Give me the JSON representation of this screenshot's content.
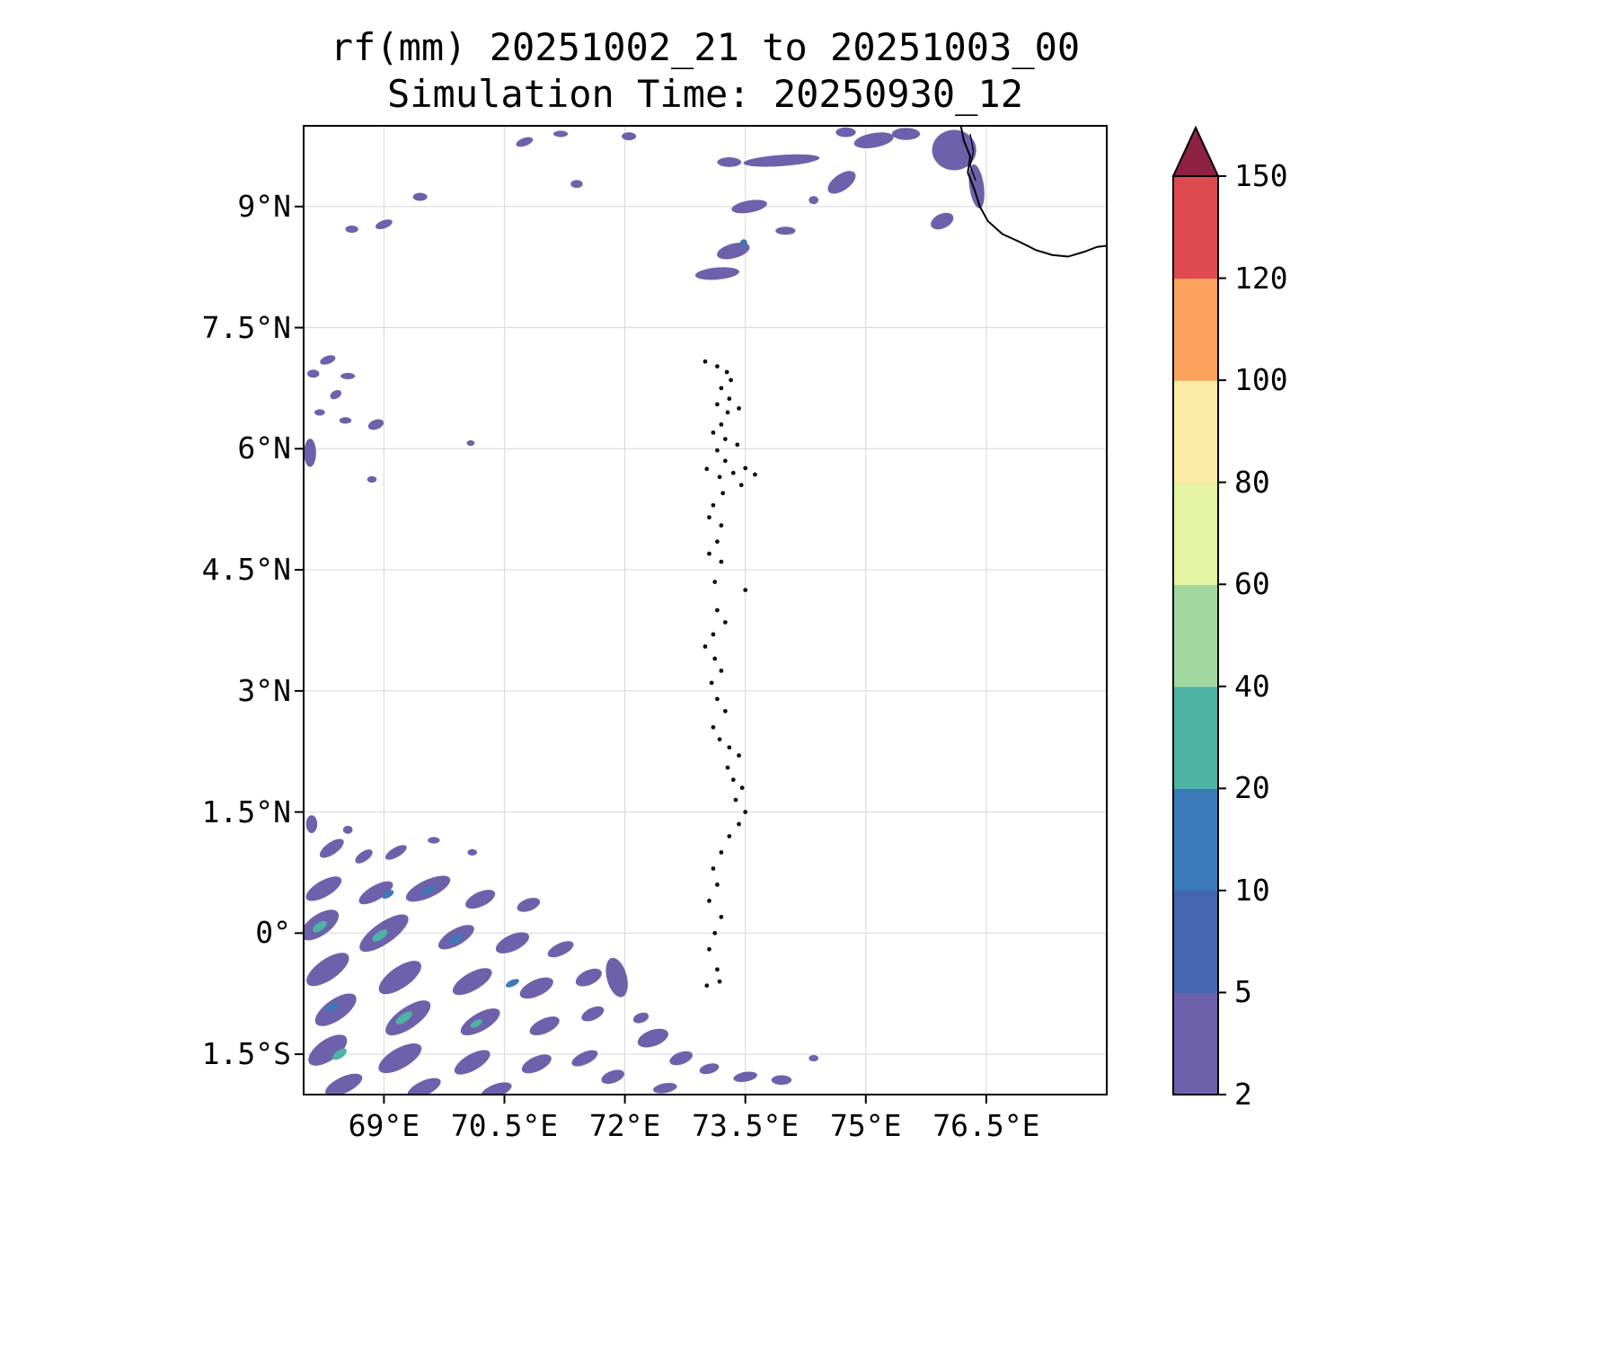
{
  "figure": {
    "kind": "rainfall-map",
    "units": "mm"
  },
  "chart_data": {
    "type": "heatmap",
    "title": "rf(mm) 20251002_21 to 20251003_00",
    "subtitle": "Simulation Time: 20250930_12",
    "x_axis": {
      "range": [
        68,
        78
      ],
      "ticks": [
        {
          "label": "69°E",
          "lon": 69
        },
        {
          "label": "70.5°E",
          "lon": 70.5
        },
        {
          "label": "72°E",
          "lon": 72
        },
        {
          "label": "73.5°E",
          "lon": 73.5
        },
        {
          "label": "75°E",
          "lon": 75
        },
        {
          "label": "76.5°E",
          "lon": 76.5
        }
      ]
    },
    "y_axis": {
      "range": [
        -2,
        10
      ],
      "ticks": [
        {
          "label": "9°N",
          "lat": 9
        },
        {
          "label": "7.5°N",
          "lat": 7.5
        },
        {
          "label": "6°N",
          "lat": 6
        },
        {
          "label": "4.5°N",
          "lat": 4.5
        },
        {
          "label": "3°N",
          "lat": 3
        },
        {
          "label": "1.5°N",
          "lat": 1.5
        },
        {
          "label": "0°",
          "lat": 0
        },
        {
          "label": "1.5°S",
          "lat": -1.5
        }
      ]
    },
    "colorbar": {
      "levels": [
        2,
        5,
        10,
        20,
        40,
        60,
        80,
        100,
        120,
        150
      ],
      "labels": [
        "2",
        "5",
        "10",
        "20",
        "40",
        "60",
        "80",
        "100",
        "120",
        "150"
      ],
      "segment_colors": [
        "#6e61ac",
        "#4565ae",
        "#3a7ab8",
        "#4db3a4",
        "#a0d8a0",
        "#e4f4a2",
        "#fdeca6",
        "#fba35c",
        "#dd4a4f"
      ],
      "extend_max_color": "#8e2044",
      "extend": "max"
    },
    "grid_color": "#dcdcdc",
    "coastline": [
      [
        76.18,
        10.02
      ],
      [
        76.22,
        9.82
      ],
      [
        76.3,
        9.62
      ],
      [
        76.27,
        9.42
      ],
      [
        76.35,
        9.22
      ],
      [
        76.42,
        9.0
      ],
      [
        76.52,
        8.82
      ],
      [
        76.7,
        8.66
      ],
      [
        76.92,
        8.56
      ],
      [
        77.12,
        8.46
      ],
      [
        77.32,
        8.4
      ],
      [
        77.52,
        8.38
      ],
      [
        77.72,
        8.44
      ],
      [
        77.88,
        8.5
      ],
      [
        78.05,
        8.52
      ]
    ],
    "coast_detail": [
      [
        76.3,
        9.9
      ],
      [
        76.34,
        9.68
      ],
      [
        76.3,
        9.5
      ],
      [
        76.37,
        9.32
      ]
    ],
    "island_dots": [
      [
        73.0,
        7.08
      ],
      [
        73.15,
        7.02
      ],
      [
        73.27,
        6.95
      ],
      [
        73.32,
        6.85
      ],
      [
        73.2,
        6.75
      ],
      [
        73.3,
        6.62
      ],
      [
        73.15,
        6.55
      ],
      [
        73.28,
        6.45
      ],
      [
        73.42,
        6.5
      ],
      [
        73.2,
        6.3
      ],
      [
        73.1,
        6.2
      ],
      [
        73.25,
        6.12
      ],
      [
        73.4,
        6.05
      ],
      [
        73.15,
        5.98
      ],
      [
        73.25,
        5.85
      ],
      [
        73.02,
        5.75
      ],
      [
        73.18,
        5.65
      ],
      [
        73.35,
        5.7
      ],
      [
        73.5,
        5.76
      ],
      [
        73.62,
        5.68
      ],
      [
        73.45,
        5.55
      ],
      [
        73.22,
        5.45
      ],
      [
        73.1,
        5.3
      ],
      [
        73.05,
        5.15
      ],
      [
        73.2,
        5.05
      ],
      [
        73.15,
        4.85
      ],
      [
        73.05,
        4.7
      ],
      [
        73.2,
        4.6
      ],
      [
        73.12,
        4.35
      ],
      [
        73.5,
        4.25
      ],
      [
        73.15,
        4.0
      ],
      [
        73.25,
        3.85
      ],
      [
        73.1,
        3.7
      ],
      [
        73.0,
        3.55
      ],
      [
        73.12,
        3.4
      ],
      [
        73.2,
        3.25
      ],
      [
        73.08,
        3.1
      ],
      [
        73.15,
        2.9
      ],
      [
        73.25,
        2.75
      ],
      [
        73.1,
        2.55
      ],
      [
        73.18,
        2.4
      ],
      [
        73.3,
        2.3
      ],
      [
        73.42,
        2.2
      ],
      [
        73.28,
        2.05
      ],
      [
        73.35,
        1.9
      ],
      [
        73.46,
        1.8
      ],
      [
        73.38,
        1.65
      ],
      [
        73.5,
        1.5
      ],
      [
        73.42,
        1.35
      ],
      [
        73.3,
        1.2
      ],
      [
        73.2,
        1.0
      ],
      [
        73.1,
        0.8
      ],
      [
        73.15,
        0.6
      ],
      [
        73.05,
        0.4
      ],
      [
        73.2,
        0.2
      ],
      [
        73.12,
        0.0
      ],
      [
        73.05,
        -0.2
      ],
      [
        73.15,
        -0.45
      ],
      [
        73.02,
        -0.65
      ],
      [
        73.18,
        -0.6
      ]
    ],
    "blob_columns": [
      "lon",
      "lat",
      "width_deg",
      "height_deg",
      "rotation_deg",
      "level_index"
    ],
    "blobs": [
      [
        75.1,
        9.82,
        0.5,
        0.18,
        -10,
        0
      ],
      [
        75.5,
        9.9,
        0.35,
        0.15,
        0,
        0
      ],
      [
        74.75,
        9.92,
        0.25,
        0.12,
        0,
        0
      ],
      [
        76.1,
        9.7,
        0.55,
        0.5,
        0,
        0
      ],
      [
        76.38,
        9.25,
        0.18,
        0.55,
        -8,
        0
      ],
      [
        73.95,
        9.57,
        0.95,
        0.14,
        -4,
        0
      ],
      [
        73.3,
        9.55,
        0.3,
        0.12,
        0,
        0
      ],
      [
        72.05,
        9.87,
        0.18,
        0.1,
        0,
        0
      ],
      [
        70.75,
        9.8,
        0.22,
        0.1,
        -20,
        0
      ],
      [
        71.2,
        9.9,
        0.18,
        0.08,
        0,
        0
      ],
      [
        71.4,
        9.28,
        0.15,
        0.1,
        0,
        0
      ],
      [
        74.7,
        9.3,
        0.4,
        0.2,
        -35,
        0
      ],
      [
        74.35,
        9.08,
        0.12,
        0.1,
        0,
        0
      ],
      [
        73.55,
        9.0,
        0.45,
        0.15,
        -10,
        0
      ],
      [
        75.95,
        8.82,
        0.3,
        0.18,
        -25,
        0
      ],
      [
        74.0,
        8.7,
        0.25,
        0.1,
        0,
        0
      ],
      [
        73.35,
        8.45,
        0.42,
        0.18,
        -15,
        0
      ],
      [
        73.15,
        8.17,
        0.55,
        0.15,
        -5,
        0
      ],
      [
        73.48,
        8.55,
        0.09,
        0.09,
        0,
        2
      ],
      [
        69.45,
        9.12,
        0.18,
        0.1,
        0,
        0
      ],
      [
        69.0,
        8.78,
        0.22,
        0.1,
        -20,
        0
      ],
      [
        68.6,
        8.72,
        0.16,
        0.09,
        0,
        0
      ],
      [
        68.3,
        7.1,
        0.2,
        0.1,
        -20,
        0
      ],
      [
        68.12,
        6.93,
        0.15,
        0.1,
        0,
        0
      ],
      [
        68.55,
        6.9,
        0.18,
        0.08,
        0,
        0
      ],
      [
        68.4,
        6.67,
        0.15,
        0.1,
        -30,
        0
      ],
      [
        68.2,
        6.45,
        0.13,
        0.08,
        0,
        0
      ],
      [
        68.52,
        6.35,
        0.15,
        0.08,
        0,
        0
      ],
      [
        68.9,
        6.3,
        0.2,
        0.12,
        -20,
        0
      ],
      [
        68.08,
        5.95,
        0.15,
        0.35,
        0,
        0
      ],
      [
        68.85,
        5.62,
        0.12,
        0.08,
        0,
        0
      ],
      [
        70.08,
        6.07,
        0.1,
        0.07,
        0,
        0
      ],
      [
        68.1,
        1.35,
        0.14,
        0.22,
        0,
        0
      ],
      [
        68.55,
        1.28,
        0.12,
        0.1,
        0,
        0
      ],
      [
        68.35,
        1.05,
        0.35,
        0.15,
        -35,
        0
      ],
      [
        68.75,
        0.95,
        0.25,
        0.12,
        -35,
        0
      ],
      [
        69.15,
        1.0,
        0.3,
        0.12,
        -30,
        0
      ],
      [
        69.62,
        1.15,
        0.15,
        0.08,
        0,
        0
      ],
      [
        70.1,
        1.0,
        0.12,
        0.08,
        0,
        0
      ],
      [
        68.25,
        0.55,
        0.5,
        0.2,
        -30,
        0
      ],
      [
        68.9,
        0.5,
        0.48,
        0.18,
        -30,
        0
      ],
      [
        69.55,
        0.55,
        0.6,
        0.22,
        -25,
        0
      ],
      [
        70.2,
        0.42,
        0.4,
        0.18,
        -25,
        0
      ],
      [
        70.8,
        0.35,
        0.3,
        0.15,
        -20,
        0
      ],
      [
        68.2,
        0.1,
        0.55,
        0.26,
        -35,
        0
      ],
      [
        69.0,
        0.0,
        0.72,
        0.26,
        -35,
        0
      ],
      [
        69.9,
        -0.05,
        0.5,
        0.2,
        -30,
        0
      ],
      [
        70.6,
        -0.12,
        0.45,
        0.2,
        -25,
        0
      ],
      [
        71.2,
        -0.2,
        0.35,
        0.15,
        -25,
        0
      ],
      [
        68.3,
        -0.45,
        0.62,
        0.26,
        -35,
        0
      ],
      [
        69.2,
        -0.55,
        0.62,
        0.26,
        -35,
        0
      ],
      [
        70.1,
        -0.6,
        0.55,
        0.22,
        -30,
        0
      ],
      [
        70.9,
        -0.68,
        0.45,
        0.2,
        -25,
        0
      ],
      [
        71.55,
        -0.55,
        0.35,
        0.18,
        -25,
        0
      ],
      [
        68.4,
        -0.95,
        0.6,
        0.26,
        -35,
        0
      ],
      [
        69.3,
        -1.05,
        0.66,
        0.26,
        -35,
        0
      ],
      [
        70.2,
        -1.1,
        0.55,
        0.22,
        -30,
        0
      ],
      [
        71.0,
        -1.15,
        0.4,
        0.18,
        -25,
        0
      ],
      [
        68.3,
        -1.45,
        0.56,
        0.26,
        -35,
        0
      ],
      [
        69.2,
        -1.55,
        0.6,
        0.25,
        -30,
        0
      ],
      [
        70.1,
        -1.6,
        0.5,
        0.2,
        -30,
        0
      ],
      [
        70.9,
        -1.62,
        0.4,
        0.18,
        -25,
        0
      ],
      [
        68.5,
        -1.88,
        0.5,
        0.2,
        -25,
        0
      ],
      [
        69.5,
        -1.92,
        0.45,
        0.18,
        -25,
        0
      ],
      [
        70.4,
        -1.95,
        0.4,
        0.16,
        -20,
        0
      ],
      [
        71.6,
        -1.0,
        0.3,
        0.15,
        -25,
        0
      ],
      [
        71.5,
        -1.55,
        0.35,
        0.15,
        -25,
        0
      ],
      [
        71.9,
        -0.55,
        0.25,
        0.5,
        -15,
        0
      ],
      [
        68.2,
        0.08,
        0.2,
        0.1,
        -35,
        3
      ],
      [
        68.95,
        -0.03,
        0.22,
        0.1,
        -35,
        3
      ],
      [
        69.25,
        -1.05,
        0.24,
        0.1,
        -35,
        3
      ],
      [
        68.45,
        -1.5,
        0.2,
        0.1,
        -35,
        3
      ],
      [
        70.15,
        -1.12,
        0.16,
        0.08,
        -30,
        3
      ],
      [
        69.05,
        0.48,
        0.16,
        0.08,
        -30,
        2
      ],
      [
        70.6,
        -0.62,
        0.18,
        0.08,
        -25,
        2
      ],
      [
        69.9,
        -0.07,
        0.18,
        0.08,
        -30,
        2
      ],
      [
        68.35,
        -0.92,
        0.16,
        0.08,
        -30,
        2
      ],
      [
        69.55,
        0.53,
        0.18,
        0.08,
        -25,
        2
      ],
      [
        72.35,
        -1.3,
        0.4,
        0.2,
        -20,
        0
      ],
      [
        72.7,
        -1.55,
        0.3,
        0.15,
        -20,
        0
      ],
      [
        73.05,
        -1.68,
        0.25,
        0.12,
        -15,
        0
      ],
      [
        73.5,
        -1.78,
        0.3,
        0.12,
        -10,
        0
      ],
      [
        73.95,
        -1.82,
        0.25,
        0.12,
        0,
        0
      ],
      [
        74.35,
        -1.55,
        0.12,
        0.08,
        0,
        0
      ],
      [
        72.5,
        -1.92,
        0.3,
        0.12,
        -10,
        0
      ],
      [
        71.85,
        -1.78,
        0.3,
        0.15,
        -20,
        0
      ],
      [
        72.2,
        -1.05,
        0.2,
        0.12,
        -20,
        0
      ]
    ]
  }
}
